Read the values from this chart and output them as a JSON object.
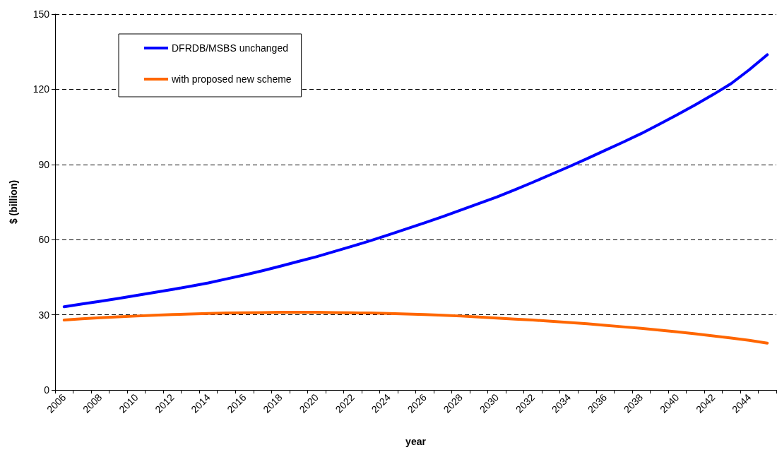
{
  "chart_data": {
    "type": "line",
    "xlabel": "year",
    "ylabel": "$ (billion)",
    "categories": [
      "2006",
      null,
      "2008",
      null,
      "2010",
      null,
      "2012",
      null,
      "2014",
      null,
      "2016",
      null,
      "2018",
      null,
      "2020",
      null,
      "2022",
      null,
      "2024",
      null,
      "2026",
      null,
      "2028",
      null,
      "2030",
      null,
      "2032",
      null,
      "2034",
      null,
      "2036",
      null,
      "2038",
      null,
      "2040",
      null,
      "2042",
      null,
      "2044",
      null
    ],
    "series": [
      {
        "name": "DFRDB/MSBS unchanged",
        "color": "#0000ff",
        "values": [
          33.2,
          34.3,
          35.4,
          36.5,
          37.7,
          38.9,
          40.1,
          41.4,
          42.7,
          44.3,
          45.9,
          47.6,
          49.4,
          51.3,
          53.2,
          55.3,
          57.4,
          59.6,
          61.9,
          64.3,
          66.7,
          69.2,
          71.8,
          74.4,
          77.0,
          79.9,
          82.9,
          86.0,
          89.1,
          92.3,
          95.6,
          98.9,
          102.3,
          106.0,
          109.8,
          113.8,
          117.9,
          122.3,
          127.8,
          133.8
        ]
      },
      {
        "name": "with proposed new scheme",
        "color": "#ff6600",
        "values": [
          27.9,
          28.4,
          28.8,
          29.2,
          29.5,
          29.8,
          30.1,
          30.3,
          30.5,
          30.7,
          30.8,
          30.9,
          31.0,
          31.0,
          31.0,
          30.9,
          30.8,
          30.7,
          30.5,
          30.3,
          30.1,
          29.8,
          29.5,
          29.1,
          28.7,
          28.3,
          27.9,
          27.4,
          26.9,
          26.4,
          25.8,
          25.2,
          24.6,
          23.9,
          23.2,
          22.4,
          21.6,
          20.7,
          19.8,
          18.7
        ]
      }
    ],
    "ylim": [
      0,
      150
    ],
    "yticks": [
      0,
      30,
      60,
      90,
      120,
      150
    ],
    "grid": "y",
    "legend": "top left",
    "marker": "none",
    "line_style": "solid"
  }
}
